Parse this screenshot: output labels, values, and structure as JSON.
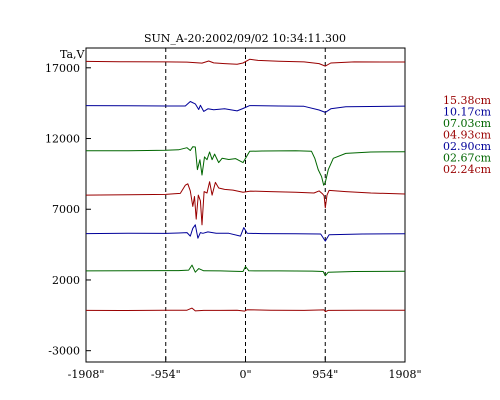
{
  "chart_data": {
    "type": "line",
    "title": "SUN_A-20:2002/09/02 10:34:11.300",
    "ylabel": "Ta,V",
    "xlim": [
      -1908,
      1908
    ],
    "ylim": [
      -3800,
      18400
    ],
    "x_ticks": [
      {
        "value": -1908,
        "label": "-1908\""
      },
      {
        "value": -954,
        "label": "-954\""
      },
      {
        "value": 0,
        "label": "0\""
      },
      {
        "value": 954,
        "label": "954\""
      },
      {
        "value": 1908,
        "label": "1908\""
      }
    ],
    "y_ticks": [
      {
        "value": 17000,
        "label": "17000"
      },
      {
        "value": 12000,
        "label": "12000"
      },
      {
        "value": 7000,
        "label": "7000"
      },
      {
        "value": 2000,
        "label": "2000"
      },
      {
        "value": -3000,
        "label": "-3000"
      }
    ],
    "vlines": [
      -954,
      0,
      954
    ],
    "grid": false,
    "legend_placement": "right",
    "series": [
      {
        "name": "15.38cm",
        "color": "#990000",
        "points": [
          [
            -1908,
            17450
          ],
          [
            -1500,
            17430
          ],
          [
            -954,
            17420
          ],
          [
            -700,
            17400
          ],
          [
            -520,
            17330
          ],
          [
            -440,
            17480
          ],
          [
            -380,
            17350
          ],
          [
            -250,
            17300
          ],
          [
            -100,
            17250
          ],
          [
            -30,
            17340
          ],
          [
            50,
            17600
          ],
          [
            150,
            17520
          ],
          [
            400,
            17460
          ],
          [
            700,
            17420
          ],
          [
            880,
            17300
          ],
          [
            954,
            17120
          ],
          [
            1020,
            17340
          ],
          [
            1300,
            17420
          ],
          [
            1908,
            17410
          ]
        ]
      },
      {
        "name": "10.17cm",
        "color": "#000099",
        "points": [
          [
            -1908,
            14330
          ],
          [
            -1400,
            14320
          ],
          [
            -954,
            14300
          ],
          [
            -720,
            14300
          ],
          [
            -660,
            14620
          ],
          [
            -600,
            14450
          ],
          [
            -560,
            14050
          ],
          [
            -540,
            14350
          ],
          [
            -500,
            13920
          ],
          [
            -450,
            14100
          ],
          [
            -380,
            14030
          ],
          [
            -250,
            14100
          ],
          [
            -100,
            13950
          ],
          [
            -30,
            14120
          ],
          [
            50,
            14330
          ],
          [
            400,
            14300
          ],
          [
            700,
            14280
          ],
          [
            880,
            14020
          ],
          [
            954,
            13850
          ],
          [
            1020,
            14100
          ],
          [
            1200,
            14250
          ],
          [
            1908,
            14290
          ]
        ]
      },
      {
        "name": "07.03cm",
        "color": "#006600",
        "points": [
          [
            -1908,
            11130
          ],
          [
            -1400,
            11140
          ],
          [
            -954,
            11170
          ],
          [
            -800,
            11200
          ],
          [
            -700,
            11350
          ],
          [
            -660,
            11150
          ],
          [
            -630,
            11420
          ],
          [
            -600,
            11400
          ],
          [
            -575,
            9800
          ],
          [
            -545,
            10500
          ],
          [
            -520,
            9420
          ],
          [
            -490,
            10700
          ],
          [
            -460,
            10500
          ],
          [
            -430,
            11050
          ],
          [
            -400,
            10500
          ],
          [
            -370,
            10900
          ],
          [
            -320,
            10300
          ],
          [
            -280,
            10600
          ],
          [
            -200,
            10520
          ],
          [
            -120,
            10580
          ],
          [
            -30,
            10300
          ],
          [
            50,
            11100
          ],
          [
            200,
            11120
          ],
          [
            600,
            11140
          ],
          [
            790,
            11100
          ],
          [
            830,
            10580
          ],
          [
            870,
            9800
          ],
          [
            910,
            9300
          ],
          [
            935,
            8700
          ],
          [
            954,
            8900
          ],
          [
            990,
            9800
          ],
          [
            1050,
            10600
          ],
          [
            1200,
            10950
          ],
          [
            1500,
            11050
          ],
          [
            1908,
            11070
          ]
        ]
      },
      {
        "name": "04.93cm",
        "color": "#990000",
        "points": [
          [
            -1908,
            8000
          ],
          [
            -1400,
            8020
          ],
          [
            -954,
            8050
          ],
          [
            -850,
            8100
          ],
          [
            -780,
            8120
          ],
          [
            -720,
            8700
          ],
          [
            -690,
            8800
          ],
          [
            -660,
            8300
          ],
          [
            -630,
            7200
          ],
          [
            -610,
            7900
          ],
          [
            -590,
            6300
          ],
          [
            -565,
            8000
          ],
          [
            -540,
            7600
          ],
          [
            -520,
            5900
          ],
          [
            -495,
            8250
          ],
          [
            -460,
            8150
          ],
          [
            -430,
            8950
          ],
          [
            -400,
            8000
          ],
          [
            -360,
            8900
          ],
          [
            -320,
            8500
          ],
          [
            -250,
            8400
          ],
          [
            -150,
            8350
          ],
          [
            -30,
            8200
          ],
          [
            60,
            8280
          ],
          [
            300,
            8250
          ],
          [
            600,
            8200
          ],
          [
            820,
            8150
          ],
          [
            880,
            8300
          ],
          [
            920,
            8100
          ],
          [
            940,
            7950
          ],
          [
            954,
            7100
          ],
          [
            975,
            8000
          ],
          [
            1000,
            8330
          ],
          [
            1200,
            8250
          ],
          [
            1500,
            8150
          ],
          [
            1908,
            8080
          ]
        ]
      },
      {
        "name": "02.90cm",
        "color": "#000099",
        "points": [
          [
            -1908,
            5280
          ],
          [
            -1400,
            5300
          ],
          [
            -954,
            5290
          ],
          [
            -800,
            5320
          ],
          [
            -700,
            5350
          ],
          [
            -660,
            5100
          ],
          [
            -630,
            5650
          ],
          [
            -600,
            5900
          ],
          [
            -570,
            4950
          ],
          [
            -540,
            5350
          ],
          [
            -510,
            5300
          ],
          [
            -450,
            5400
          ],
          [
            -350,
            5300
          ],
          [
            -200,
            5300
          ],
          [
            -60,
            5100
          ],
          [
            -20,
            5700
          ],
          [
            20,
            5300
          ],
          [
            200,
            5280
          ],
          [
            600,
            5270
          ],
          [
            900,
            5250
          ],
          [
            954,
            4750
          ],
          [
            1000,
            5200
          ],
          [
            1400,
            5250
          ],
          [
            1908,
            5270
          ]
        ]
      },
      {
        "name": "02.67cm",
        "color": "#006600",
        "points": [
          [
            -1908,
            2640
          ],
          [
            -1400,
            2650
          ],
          [
            -954,
            2660
          ],
          [
            -800,
            2660
          ],
          [
            -680,
            2700
          ],
          [
            -640,
            3050
          ],
          [
            -600,
            2550
          ],
          [
            -560,
            2800
          ],
          [
            -500,
            2650
          ],
          [
            -300,
            2640
          ],
          [
            -150,
            2620
          ],
          [
            -30,
            2600
          ],
          [
            0,
            2950
          ],
          [
            40,
            2650
          ],
          [
            400,
            2640
          ],
          [
            800,
            2630
          ],
          [
            930,
            2600
          ],
          [
            954,
            2300
          ],
          [
            990,
            2550
          ],
          [
            1300,
            2600
          ],
          [
            1908,
            2610
          ]
        ]
      },
      {
        "name": "02.24cm",
        "color": "#990000",
        "points": [
          [
            -1908,
            -150
          ],
          [
            -1500,
            -160
          ],
          [
            -954,
            -140
          ],
          [
            -700,
            -140
          ],
          [
            -640,
            10
          ],
          [
            -600,
            -190
          ],
          [
            -500,
            -150
          ],
          [
            -300,
            -150
          ],
          [
            -100,
            -140
          ],
          [
            -10,
            -200
          ],
          [
            20,
            -100
          ],
          [
            300,
            -140
          ],
          [
            700,
            -150
          ],
          [
            940,
            -120
          ],
          [
            954,
            -240
          ],
          [
            990,
            -150
          ],
          [
            1400,
            -140
          ],
          [
            1908,
            -140
          ]
        ]
      }
    ]
  }
}
